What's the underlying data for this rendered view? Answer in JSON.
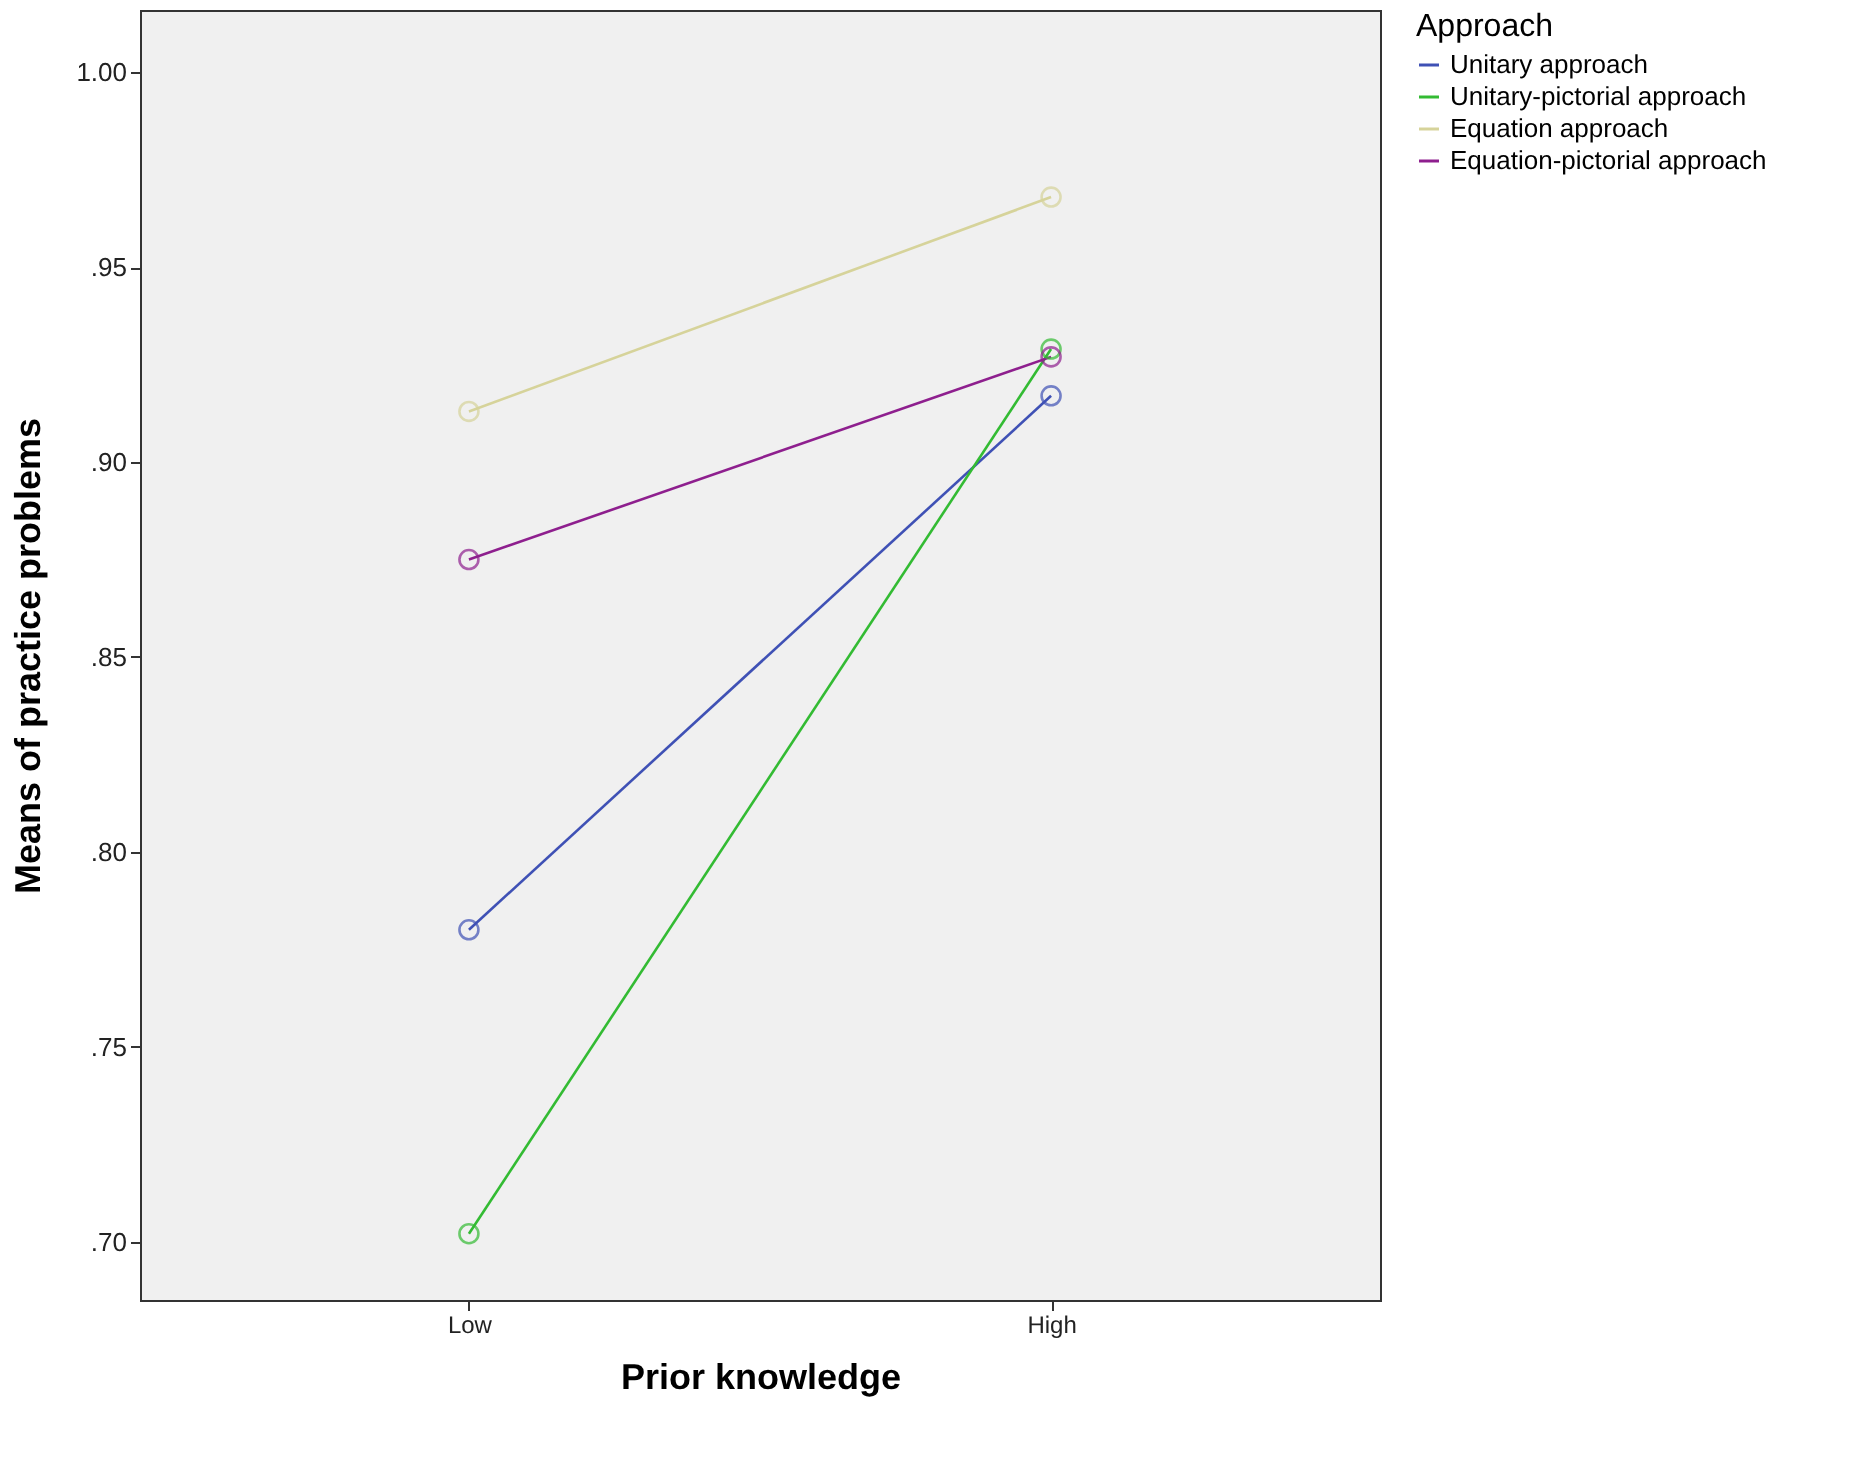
{
  "chart_data": {
    "type": "line",
    "xlabel": "Prior knowledge",
    "ylabel": "Means of practice problems",
    "legend_title": "Approach",
    "categories": [
      "Low",
      "High"
    ],
    "series": [
      {
        "name": "Unitary approach",
        "color": "#3f51b5",
        "values": [
          0.78,
          0.917
        ]
      },
      {
        "name": "Unitary-pictorial approach",
        "color": "#33bb33",
        "values": [
          0.702,
          0.929
        ]
      },
      {
        "name": "Equation approach",
        "color": "#d6d39a",
        "values": [
          0.913,
          0.968
        ]
      },
      {
        "name": "Equation-pictorial approach",
        "color": "#8e1f8e",
        "values": [
          0.875,
          0.927
        ]
      }
    ],
    "ylim": [
      0.685,
      1.016
    ],
    "yticks": [
      {
        "value": 0.7,
        "label": ".70"
      },
      {
        "value": 0.75,
        "label": ".75"
      },
      {
        "value": 0.8,
        "label": ".80"
      },
      {
        "value": 0.85,
        "label": ".85"
      },
      {
        "value": 0.9,
        "label": ".90"
      },
      {
        "value": 0.95,
        "label": ".95"
      },
      {
        "value": 1.0,
        "label": "1.00"
      }
    ],
    "grid": false,
    "legend": "top right",
    "marker": "circle",
    "line_style": "solid"
  }
}
